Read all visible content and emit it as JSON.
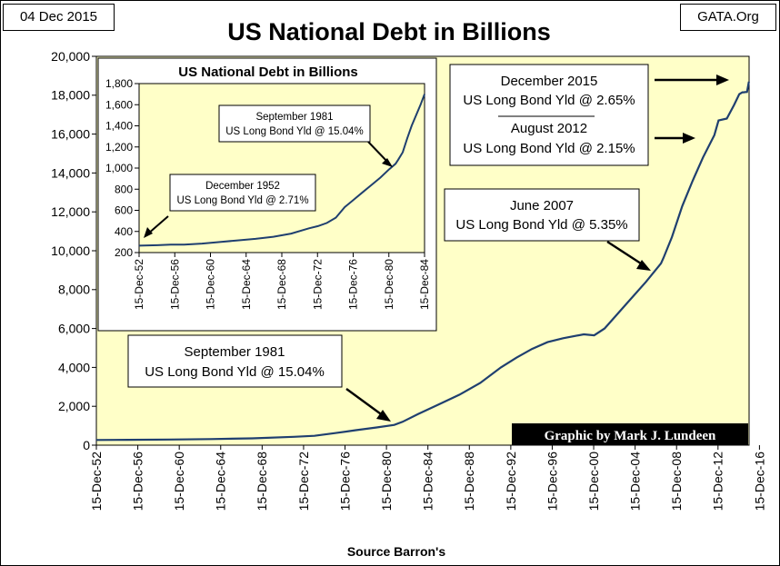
{
  "header": {
    "date": "04 Dec 2015",
    "source_site": "GATA.Org",
    "credit": "Graphic by Mark J. Lundeen"
  },
  "colors": {
    "plot_bg": "#ffffc8",
    "line": "#1f3f6f",
    "credit_bg": "#000000",
    "credit_text": "#ffffff"
  },
  "chart_data": [
    {
      "id": "main",
      "type": "line",
      "title": "US National Debt in Billions",
      "xlabel": "Source Barron's",
      "ylabel": "",
      "ylim": [
        0,
        20000
      ],
      "xlim": [
        1952.95,
        2015.95
      ],
      "yticks": [
        0,
        2000,
        4000,
        6000,
        8000,
        10000,
        12000,
        14000,
        16000,
        18000,
        20000
      ],
      "ytick_labels": [
        "0",
        "2,000",
        "4,000",
        "6,000",
        "8,000",
        "10,000",
        "12,000",
        "14,000",
        "16,000",
        "18,000",
        "20,000"
      ],
      "xtick_values": [
        1952.95,
        1956.95,
        1960.95,
        1964.95,
        1968.95,
        1972.95,
        1976.95,
        1980.95,
        1984.95,
        1988.95,
        1992.95,
        1996.95,
        2000.95,
        2004.95,
        2008.95,
        2012.95,
        2016.95
      ],
      "xtick_labels": [
        "15-Dec-52",
        "15-Dec-56",
        "15-Dec-60",
        "15-Dec-64",
        "15-Dec-68",
        "15-Dec-72",
        "15-Dec-76",
        "15-Dec-80",
        "15-Dec-84",
        "15-Dec-88",
        "15-Dec-92",
        "15-Dec-96",
        "15-Dec-00",
        "15-Dec-04",
        "15-Dec-08",
        "15-Dec-12",
        "15-Dec-16"
      ],
      "series": [
        {
          "name": "US National Debt",
          "x": [
            1952.95,
            1956.0,
            1960.0,
            1964.0,
            1968.0,
            1972.0,
            1974.0,
            1976.0,
            1978.0,
            1980.0,
            1981.7,
            1982.5,
            1984.0,
            1986.0,
            1988.0,
            1990.0,
            1992.0,
            1993.5,
            1995.0,
            1996.5,
            1998.0,
            2000.0,
            2001.0,
            2002.0,
            2004.0,
            2006.0,
            2007.45,
            2007.7,
            2008.5,
            2009.5,
            2010.5,
            2011.5,
            2012.6,
            2013.0,
            2013.8,
            2014.5,
            2015.0,
            2015.3,
            2015.45,
            2015.55,
            2015.75,
            2015.93
          ],
          "y": [
            265,
            275,
            290,
            315,
            350,
            430,
            480,
            620,
            770,
            910,
            1040,
            1200,
            1600,
            2100,
            2600,
            3200,
            4000,
            4500,
            4950,
            5300,
            5500,
            5700,
            5650,
            6000,
            7200,
            8400,
            9350,
            9650,
            10700,
            12300,
            13600,
            14800,
            15950,
            16700,
            16800,
            17500,
            18050,
            18150,
            18150,
            18160,
            18170,
            18700
          ]
        }
      ],
      "annotations": [
        {
          "lines": [
            "September 1981",
            "US Long Bond Yld @ 15.04%"
          ]
        },
        {
          "lines": [
            "June 2007",
            "US Long Bond Yld @ 5.35%"
          ]
        },
        {
          "lines": [
            "December 2015",
            "US Long Bond Yld @ 2.65%",
            "August 2012",
            "US Long Bond Yld @ 2.15%"
          ]
        }
      ]
    },
    {
      "id": "inset",
      "type": "line",
      "title": "US National Debt in Billions",
      "ylim": [
        200,
        1800
      ],
      "xlim": [
        1952.95,
        1984.95
      ],
      "yticks": [
        200,
        400,
        600,
        800,
        1000,
        1200,
        1400,
        1600,
        1800
      ],
      "ytick_labels": [
        "200",
        "400",
        "600",
        "800",
        "1,000",
        "1,200",
        "1,400",
        "1,600",
        "1,800"
      ],
      "xtick_values": [
        1952.95,
        1956.95,
        1960.95,
        1964.95,
        1968.95,
        1972.95,
        1976.95,
        1980.95,
        1984.95
      ],
      "xtick_labels": [
        "15-Dec-52",
        "15-Dec-56",
        "15-Dec-60",
        "15-Dec-64",
        "15-Dec-68",
        "15-Dec-72",
        "15-Dec-76",
        "15-Dec-80",
        "15-Dec-84"
      ],
      "series": [
        {
          "name": "US National Debt",
          "x": [
            1952.95,
            1955.0,
            1956.5,
            1958.0,
            1960.0,
            1962.0,
            1964.0,
            1966.0,
            1968.0,
            1970.0,
            1972.0,
            1973.0,
            1974.0,
            1975.0,
            1976.0,
            1977.0,
            1978.0,
            1979.0,
            1980.0,
            1981.0,
            1981.7,
            1982.0,
            1982.5,
            1983.0,
            1983.5,
            1984.0,
            1984.5,
            1984.95
          ],
          "y": [
            265,
            270,
            275,
            275,
            285,
            300,
            315,
            330,
            350,
            380,
            430,
            450,
            480,
            530,
            630,
            700,
            770,
            840,
            910,
            990,
            1040,
            1080,
            1150,
            1280,
            1400,
            1500,
            1600,
            1700
          ]
        }
      ],
      "annotations": [
        {
          "lines": [
            "September 1981",
            "US Long Bond Yld @ 15.04%"
          ]
        },
        {
          "lines": [
            "December 1952",
            "US Long Bond Yld @ 2.71%"
          ]
        }
      ]
    }
  ]
}
